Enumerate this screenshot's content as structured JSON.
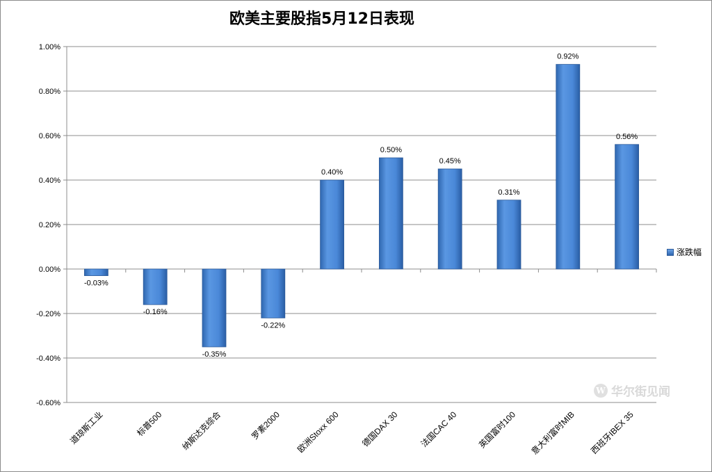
{
  "chart_data": {
    "type": "bar",
    "title": "欧美主要股指5月12日表现",
    "categories": [
      "道琼斯工业",
      "标普500",
      "纳斯达克综合",
      "罗素2000",
      "欧洲Stoxx 600",
      "德国DAX 30",
      "法国CAC 40",
      "英国富时100",
      "意大利富时MIB",
      "西班牙IBEX 35"
    ],
    "series": [
      {
        "name": "涨跌幅",
        "values": [
          -0.03,
          -0.16,
          -0.35,
          -0.22,
          0.4,
          0.5,
          0.45,
          0.31,
          0.92,
          0.56
        ]
      }
    ],
    "data_labels": [
      "-0.03%",
      "-0.16%",
      "-0.35%",
      "-0.22%",
      "0.40%",
      "0.50%",
      "0.45%",
      "0.31%",
      "0.92%",
      "0.56%"
    ],
    "ylim": [
      -0.6,
      1.0
    ],
    "yticks": [
      1.0,
      0.8,
      0.6,
      0.4,
      0.2,
      0.0,
      -0.2,
      -0.4,
      -0.6
    ],
    "ytick_labels": [
      "1.00%",
      "0.80%",
      "0.60%",
      "0.40%",
      "0.20%",
      "0.00%",
      "-0.20%",
      "-0.40%",
      "-0.60%"
    ],
    "grid": true,
    "legend": "right",
    "bar_color": "#3f7fd0"
  },
  "watermark": "华尔街见闻"
}
